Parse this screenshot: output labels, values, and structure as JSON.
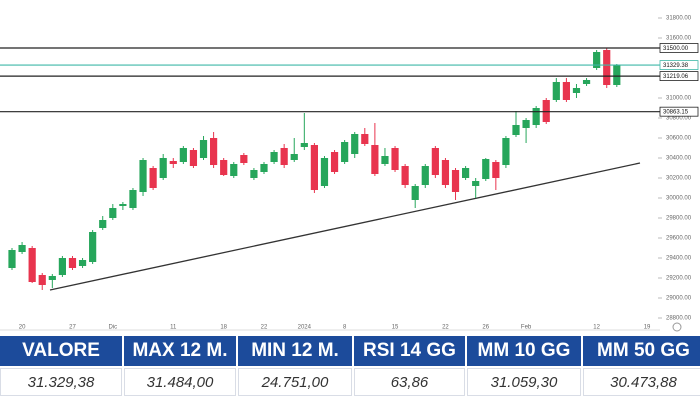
{
  "chart_data": {
    "type": "candlestick",
    "categories": [
      null,
      "20",
      null,
      null,
      null,
      null,
      "27",
      null,
      null,
      null,
      "Dic",
      null,
      null,
      null,
      null,
      null,
      "11",
      null,
      null,
      null,
      null,
      "18",
      null,
      null,
      null,
      "22",
      null,
      null,
      null,
      "2024",
      null,
      null,
      null,
      "8",
      null,
      null,
      null,
      null,
      "15",
      null,
      null,
      null,
      null,
      "22",
      null,
      null,
      null,
      "26",
      null,
      null,
      null,
      "Feb",
      null,
      null,
      null,
      null,
      null,
      null,
      "12",
      null,
      null,
      null,
      null,
      "19",
      null
    ],
    "open": [
      29300,
      29460,
      29500,
      29230,
      29180,
      29230,
      29400,
      29320,
      29360,
      29700,
      29800,
      29920,
      29900,
      30060,
      30300,
      30200,
      30370,
      30360,
      30480,
      30400,
      30600,
      30380,
      30220,
      30430,
      30200,
      30260,
      30360,
      30500,
      30380,
      30510,
      30530,
      30120,
      30460,
      30360,
      30440,
      30640,
      30530,
      30340,
      30500,
      30320,
      29980,
      30130,
      30500,
      30380,
      30280,
      30200,
      30120,
      30190,
      30360,
      30330,
      30630,
      30700,
      30730,
      30980,
      30980,
      31160,
      31050,
      31140,
      31300,
      31480,
      31130,
      null,
      null,
      null,
      null
    ],
    "high": [
      29500,
      29560,
      29520,
      29250,
      29240,
      29420,
      29420,
      29400,
      29680,
      29820,
      29940,
      29960,
      30100,
      30400,
      30320,
      30440,
      30400,
      30520,
      30500,
      30620,
      30660,
      30400,
      30360,
      30450,
      30300,
      30360,
      30480,
      30540,
      30600,
      30850,
      30550,
      30420,
      30480,
      30580,
      30660,
      30700,
      30750,
      30500,
      30520,
      30340,
      30140,
      30340,
      30520,
      30400,
      30300,
      30320,
      30200,
      30400,
      30380,
      30620,
      30870,
      30800,
      30920,
      31000,
      31200,
      31200,
      31140,
      31200,
      31480,
      31500,
      31340,
      null,
      null,
      null,
      null
    ],
    "low": [
      29280,
      29440,
      29150,
      29080,
      29100,
      29210,
      29280,
      29300,
      29340,
      29680,
      29780,
      29880,
      29880,
      30020,
      30080,
      30180,
      30300,
      30340,
      30300,
      30380,
      30300,
      30220,
      30200,
      30330,
      30180,
      30240,
      30340,
      30300,
      30360,
      30480,
      30050,
      30100,
      30240,
      30340,
      30400,
      30520,
      30220,
      30320,
      30260,
      30100,
      29900,
      30100,
      30200,
      30100,
      29980,
      30180,
      30000,
      30170,
      30080,
      30300,
      30610,
      30550,
      30700,
      30740,
      30960,
      30960,
      31000,
      31120,
      31280,
      31100,
      31110,
      null,
      null,
      null,
      null
    ],
    "close": [
      29480,
      29530,
      29160,
      29130,
      29220,
      29400,
      29300,
      29380,
      29660,
      29780,
      29900,
      29940,
      30080,
      30380,
      30100,
      30400,
      30340,
      30500,
      30320,
      30580,
      30330,
      30230,
      30340,
      30350,
      30280,
      30340,
      30460,
      30330,
      30440,
      30550,
      30080,
      30400,
      30260,
      30560,
      30640,
      30540,
      30240,
      30420,
      30280,
      30130,
      30120,
      30320,
      30230,
      30130,
      30060,
      30300,
      30170,
      30390,
      30200,
      30600,
      30730,
      30780,
      30900,
      30760,
      31160,
      30980,
      31100,
      31180,
      31460,
      31130,
      31329.38,
      null,
      null,
      null,
      null
    ],
    "up_color": "#26a65b",
    "down_color": "#e8344e",
    "ylim": [
      28680,
      31980
    ],
    "yticks": [
      {
        "value": 28800,
        "label": "28800.00"
      },
      {
        "value": 29000,
        "label": "29000.00"
      },
      {
        "value": 29200,
        "label": "29200.00"
      },
      {
        "value": 29400,
        "label": "29400.00"
      },
      {
        "value": 29600,
        "label": "29600.00"
      },
      {
        "value": 29800,
        "label": "29800.00"
      },
      {
        "value": 30000,
        "label": "30000.00"
      },
      {
        "value": 30200,
        "label": "30200.00"
      },
      {
        "value": 30400,
        "label": "30400.00"
      },
      {
        "value": 30600,
        "label": "30600.00"
      },
      {
        "value": 30800,
        "label": "30800.00"
      },
      {
        "value": 31000,
        "label": "31000.00"
      },
      {
        "value": 31600,
        "label": "31600.00"
      },
      {
        "value": 31800,
        "label": "31800.00"
      }
    ],
    "levels": [
      {
        "value": 31500,
        "label": "31500.00",
        "color": "#222222"
      },
      {
        "value": 31329.38,
        "label": "31329.38",
        "color": "#3fb8a8"
      },
      {
        "value": 31219.06,
        "label": "31219.06",
        "color": "#222222"
      },
      {
        "value": 30863.15,
        "label": "30863.15",
        "color": "#222222"
      }
    ]
  },
  "table": {
    "headers": [
      "VALORE",
      "MAX 12 M.",
      "MIN 12 M.",
      "RSI 14 GG",
      "MM 10 GG",
      "MM 50 GG"
    ],
    "values": [
      "31.329,38",
      "31.484,00",
      "24.751,00",
      "63,86",
      "31.059,30",
      "30.473,88"
    ]
  }
}
